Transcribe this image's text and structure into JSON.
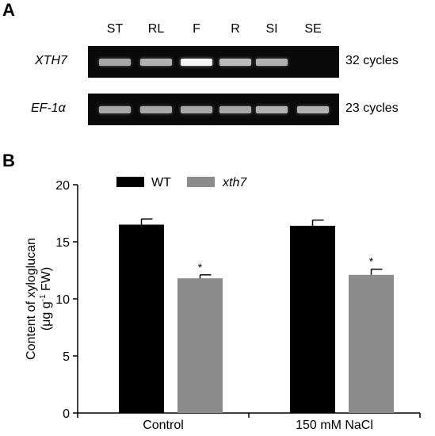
{
  "panel_a": {
    "letter": "A",
    "lanes": [
      "ST",
      "RL",
      "F",
      "R",
      "SI",
      "SE"
    ],
    "rows": [
      {
        "gene": "XTH7",
        "cycles": "32 cycles",
        "band_intensity": [
          0.55,
          0.6,
          0.95,
          0.65,
          0.6,
          0.0
        ]
      },
      {
        "gene": "EF-1α",
        "cycles": "23 cycles",
        "band_intensity": [
          0.55,
          0.55,
          0.55,
          0.55,
          0.6,
          0.6
        ]
      }
    ]
  },
  "panel_b": {
    "letter": "B"
  },
  "chart_data": {
    "type": "bar",
    "categories": [
      "Control",
      "150 mM NaCl"
    ],
    "series": [
      {
        "name": "WT",
        "color": "#000000",
        "values": [
          16.5,
          16.4
        ],
        "errors": [
          0.5,
          0.5
        ],
        "significance": [
          "",
          ""
        ]
      },
      {
        "name": "xth7",
        "color": "#8c8c8c",
        "values": [
          11.8,
          12.1
        ],
        "errors": [
          0.3,
          0.5
        ],
        "significance": [
          "*",
          "*"
        ]
      }
    ],
    "ylabel_line1": "Content of xyloglucan",
    "ylabel_line2_pre": "(μg g",
    "ylabel_line2_sup": "-1",
    "ylabel_line2_post": " FW)",
    "ylim": [
      0,
      20
    ],
    "yticks": [
      0,
      5,
      10,
      15,
      20
    ],
    "legend_position": "top-left",
    "grid": false
  }
}
